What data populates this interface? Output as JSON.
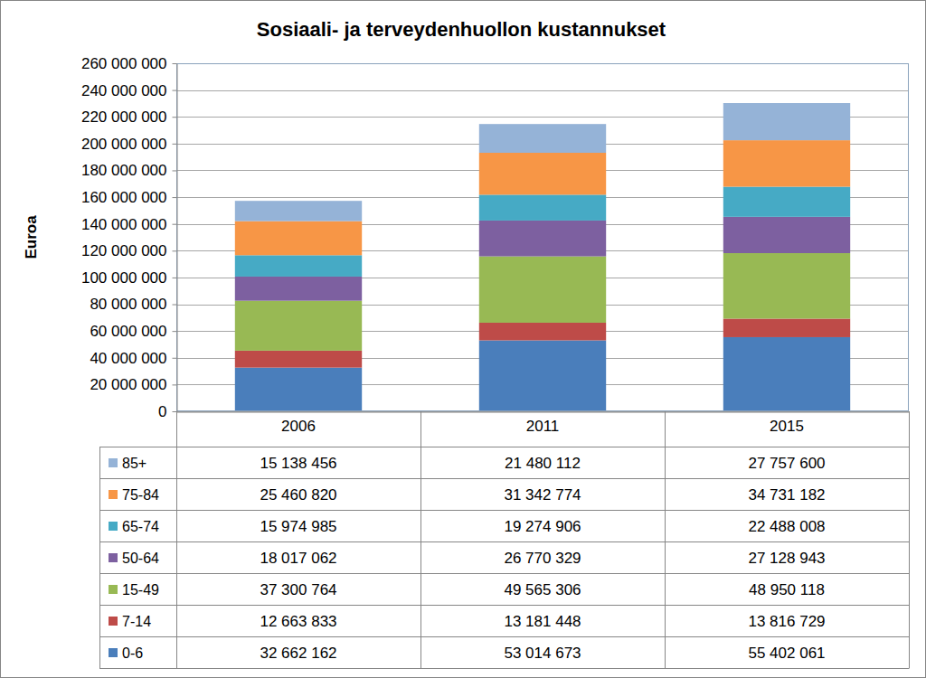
{
  "chart_data": {
    "type": "bar",
    "stacked": true,
    "grid": true,
    "data_labels": true,
    "title": "Sosiaali- ja terveydenhuollon kustannukset",
    "y_label": "Euroa",
    "categories": [
      "2006",
      "2011",
      "2015"
    ],
    "ylim": [
      0,
      260000000
    ],
    "yticks": [
      0,
      {
        "value": 20000000,
        "label": "20 000 000"
      },
      {
        "value": 40000000,
        "label": "40 000 000"
      },
      {
        "value": 60000000,
        "label": "60 000 000"
      },
      {
        "value": 80000000,
        "label": "80 000 000"
      },
      {
        "value": 100000000,
        "label": "100 000 000"
      },
      {
        "value": 120000000,
        "label": "120 000 000"
      },
      {
        "value": 140000000,
        "label": "140 000 000"
      },
      {
        "value": 160000000,
        "label": "160 000 000"
      },
      {
        "value": 180000000,
        "label": "180 000 000"
      },
      {
        "value": 200000000,
        "label": "200 000 000"
      },
      {
        "value": 220000000,
        "label": "220 000 000"
      },
      {
        "value": 240000000,
        "label": "240 000 000"
      },
      {
        "value": 260000000,
        "label": "260 000 000"
      }
    ],
    "series": [
      {
        "name": "0-6",
        "color": "#4a7ebb",
        "values": [
          32662162,
          53014673,
          55402061
        ],
        "value_labels": [
          "32 662 162",
          "53 014 673",
          "55 402 061"
        ]
      },
      {
        "name": "7-14",
        "color": "#be4b48",
        "values": [
          12663833,
          13181448,
          13816729
        ],
        "value_labels": [
          "12 663 833",
          "13 181 448",
          "13 816 729"
        ]
      },
      {
        "name": "15-49",
        "color": "#98b954",
        "values": [
          37300764,
          49565306,
          48950118
        ],
        "value_labels": [
          "37 300 764",
          "49 565 306",
          "48 950 118"
        ]
      },
      {
        "name": "50-64",
        "color": "#7d60a0",
        "values": [
          18017062,
          26770329,
          27128943
        ],
        "value_labels": [
          "18 017 062",
          "26 770 329",
          "27 128 943"
        ]
      },
      {
        "name": "65-74",
        "color": "#46aac5",
        "values": [
          15974985,
          19274906,
          22488008
        ],
        "value_labels": [
          "15 974 985",
          "19 274 906",
          "22 488 008"
        ]
      },
      {
        "name": "75-84",
        "color": "#f79646",
        "values": [
          25460820,
          31342774,
          34731182
        ],
        "value_labels": [
          "25 460 820",
          "31 342 774",
          "34 731 182"
        ]
      },
      {
        "name": "85+",
        "color": "#95b3d7",
        "values": [
          15138456,
          21480112,
          27757600
        ],
        "value_labels": [
          "15 138 456",
          "21 480 112",
          "27 757 600"
        ]
      }
    ]
  }
}
